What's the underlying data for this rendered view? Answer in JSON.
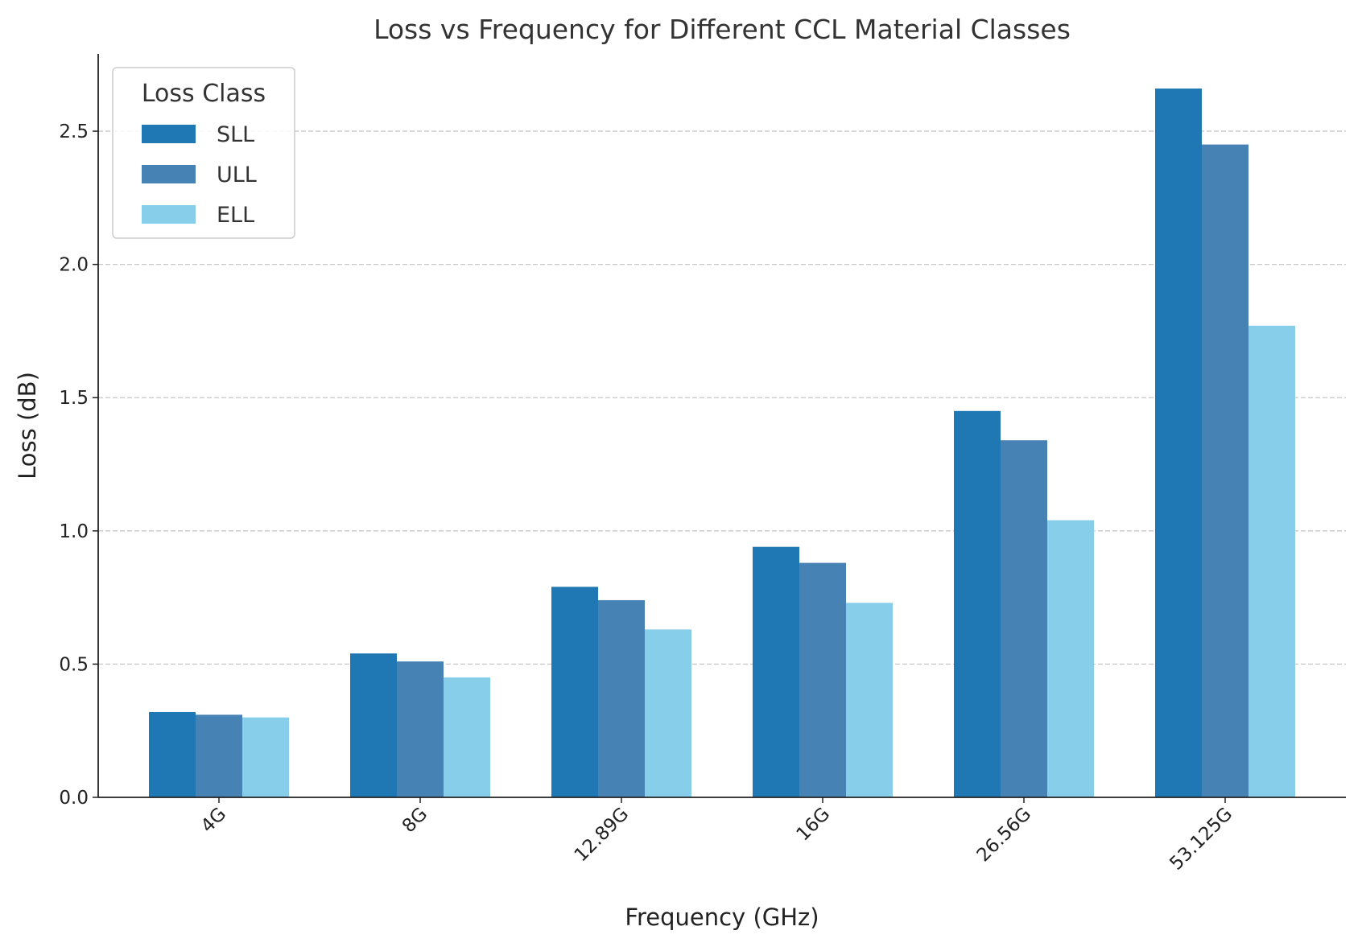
{
  "chart_data": {
    "type": "bar",
    "title": "Loss vs Frequency for Different CCL Material Classes",
    "xlabel": "Frequency (GHz)",
    "ylabel": "Loss (dB)",
    "categories": [
      "4G",
      "8G",
      "12.89G",
      "16G",
      "26.56G",
      "53.125G"
    ],
    "series": [
      {
        "name": "SLL",
        "color": "#1f77b4",
        "values": [
          0.32,
          0.54,
          0.79,
          0.94,
          1.45,
          2.66
        ]
      },
      {
        "name": "ULL",
        "color": "#4682b4",
        "values": [
          0.31,
          0.51,
          0.74,
          0.88,
          1.34,
          2.45
        ]
      },
      {
        "name": "ELL",
        "color": "#87ceeb",
        "values": [
          0.3,
          0.45,
          0.63,
          0.73,
          1.04,
          1.77
        ]
      }
    ],
    "yticks": [
      "0.0",
      "0.5",
      "1.0",
      "1.5",
      "2.0",
      "2.5"
    ],
    "ylim": [
      0,
      2.79
    ],
    "grid": "y dashed",
    "legend": {
      "title": "Loss Class",
      "placement": "top-left"
    }
  }
}
